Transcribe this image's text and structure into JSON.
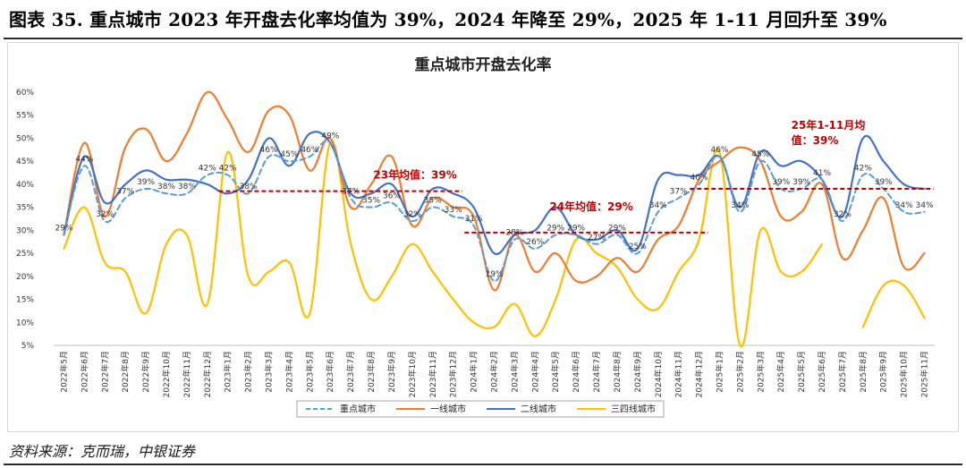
{
  "figure_title": "图表 35. 重点城市 2023 年开盘去化率均值为 39%，2024 年降至 29%，2025 年 1-11 月回升至 39%",
  "source": "资料来源：克而瑞，中银证券",
  "chart_data": {
    "type": "line",
    "title": "重点城市开盘去化率",
    "xlabel": "",
    "ylabel": "",
    "ylim": [
      0.05,
      0.6
    ],
    "yticks": [
      "5%",
      "10%",
      "15%",
      "20%",
      "25%",
      "30%",
      "35%",
      "40%",
      "45%",
      "50%",
      "55%",
      "60%"
    ],
    "categories": [
      "2022年5月",
      "2022年6月",
      "2022年7月",
      "2022年8月",
      "2022年9月",
      "2022年10月",
      "2022年11月",
      "2022年12月",
      "2023年1月",
      "2023年2月",
      "2023年3月",
      "2023年4月",
      "2023年5月",
      "2023年6月",
      "2023年7月",
      "2023年8月",
      "2023年9月",
      "2023年10月",
      "2023年11月",
      "2023年12月",
      "2024年1月",
      "2024年2月",
      "2024年3月",
      "2024年4月",
      "2024年5月",
      "2024年6月",
      "2024年7月",
      "2024年8月",
      "2024年9月",
      "2024年10月",
      "2024年11月",
      "2024年12月",
      "2025年1月",
      "2025年2月",
      "2025年3月",
      "2025年4月",
      "2025年5月",
      "2025年6月",
      "2025年7月",
      "2025年8月",
      "2025年9月",
      "2025年10月",
      "2025年11月"
    ],
    "series": [
      {
        "name": "重点城市",
        "color": "#5b9bd5",
        "dash": true,
        "values": [
          0.29,
          0.44,
          0.32,
          0.37,
          0.39,
          0.38,
          0.38,
          0.42,
          0.42,
          0.38,
          0.46,
          0.45,
          0.46,
          0.49,
          0.37,
          0.35,
          0.36,
          0.32,
          0.35,
          0.33,
          0.31,
          0.19,
          0.28,
          0.26,
          0.29,
          0.29,
          0.27,
          0.29,
          0.25,
          0.34,
          0.37,
          0.4,
          0.46,
          0.34,
          0.45,
          0.39,
          0.39,
          0.41,
          0.32,
          0.42,
          0.39,
          0.34,
          0.34
        ],
        "labels": [
          "29%",
          "44%",
          "32%",
          "37%",
          "39%",
          "38%",
          "38%",
          "42%",
          "42%",
          "38%",
          "46%",
          "45%",
          "46%",
          "49%",
          "37%",
          "35%",
          "36%",
          "32%",
          "35%",
          "33%",
          "31%",
          "19%",
          "28%",
          "26%",
          "29%",
          "29%",
          "27%",
          "29%",
          "25%",
          "34%",
          "37%",
          "40%",
          "46%",
          "34%",
          "45%",
          "39%",
          "39%",
          "41%",
          "32%",
          "42%",
          "39%",
          "34%",
          "34%"
        ]
      },
      {
        "name": "一线城市",
        "color": "#ed7d31",
        "dash": false,
        "values": [
          0.29,
          0.49,
          0.33,
          0.48,
          0.52,
          0.45,
          0.51,
          0.6,
          0.54,
          0.47,
          0.56,
          0.55,
          0.43,
          0.5,
          0.35,
          0.4,
          0.46,
          0.31,
          0.37,
          0.35,
          0.33,
          0.17,
          0.29,
          0.21,
          0.25,
          0.19,
          0.2,
          0.24,
          0.21,
          0.28,
          0.31,
          0.41,
          0.45,
          0.48,
          0.45,
          0.33,
          0.34,
          0.4,
          0.24,
          0.3,
          0.37,
          0.22,
          0.25
        ]
      },
      {
        "name": "二线城市",
        "color": "#4472c4",
        "dash": false,
        "values": [
          0.29,
          0.46,
          0.36,
          0.4,
          0.43,
          0.41,
          0.41,
          0.4,
          0.38,
          0.41,
          0.5,
          0.44,
          0.51,
          0.49,
          0.38,
          0.38,
          0.4,
          0.33,
          0.39,
          0.38,
          0.35,
          0.25,
          0.29,
          0.3,
          0.35,
          0.29,
          0.28,
          0.3,
          0.26,
          0.41,
          0.42,
          0.42,
          0.46,
          0.35,
          0.47,
          0.44,
          0.45,
          0.41,
          0.33,
          0.5,
          0.45,
          0.4,
          0.39
        ]
      },
      {
        "name": "三四线城市",
        "color": "#ffc000",
        "dash": false,
        "values": [
          0.26,
          0.35,
          0.23,
          0.21,
          0.12,
          0.27,
          0.29,
          0.14,
          0.47,
          0.2,
          0.21,
          0.23,
          0.12,
          0.49,
          0.27,
          0.15,
          0.2,
          0.27,
          0.21,
          0.15,
          0.1,
          0.09,
          0.14,
          0.07,
          0.15,
          0.28,
          0.25,
          0.22,
          0.15,
          0.13,
          0.21,
          0.28,
          0.47,
          0.05,
          0.3,
          0.21,
          0.21,
          0.27,
          null,
          0.09,
          0.18,
          0.18,
          0.11
        ]
      }
    ],
    "reference_lines": [
      {
        "label": "23年均值：39%",
        "value": 0.385,
        "from": "2023年1月",
        "to": "2023年12月",
        "color": "#c00000"
      },
      {
        "label": "24年均值：29%",
        "value": 0.295,
        "from": "2024年1月",
        "to": "2024年12月",
        "color": "#c00000"
      },
      {
        "label": "25年1-11月均值：39%",
        "value": 0.39,
        "from": "2024年12月",
        "to": "2025年11月",
        "color": "#c00000"
      }
    ],
    "legend_position": "bottom",
    "grid": false
  }
}
